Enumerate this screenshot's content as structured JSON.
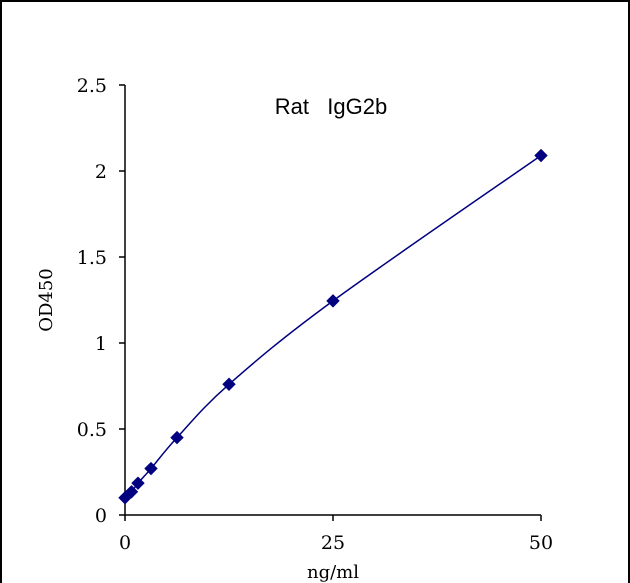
{
  "chart_data": {
    "type": "scatter",
    "title": "Rat   IgG2b",
    "xlabel": "ng/ml",
    "ylabel": "OD450",
    "xlim": [
      0,
      50
    ],
    "ylim": [
      0,
      2.5
    ],
    "x_ticks": [
      "0",
      "25",
      "50"
    ],
    "x_tick_values": [
      0,
      25,
      50
    ],
    "y_ticks": [
      "0",
      "0.5",
      "1",
      "1.5",
      "2",
      "2.5"
    ],
    "y_tick_values": [
      0,
      0.5,
      1,
      1.5,
      2,
      2.5
    ],
    "grid": false,
    "marker": "diamond",
    "fit_line": true,
    "colors": {
      "series": "#000080",
      "axis": "#000000",
      "frame": "#000000"
    },
    "series": [
      {
        "x": [
          0,
          0.78,
          1.56,
          3.125,
          6.25,
          12.5,
          25,
          50
        ],
        "y": [
          0.1,
          0.135,
          0.185,
          0.27,
          0.45,
          0.76,
          1.245,
          2.09
        ]
      }
    ]
  }
}
